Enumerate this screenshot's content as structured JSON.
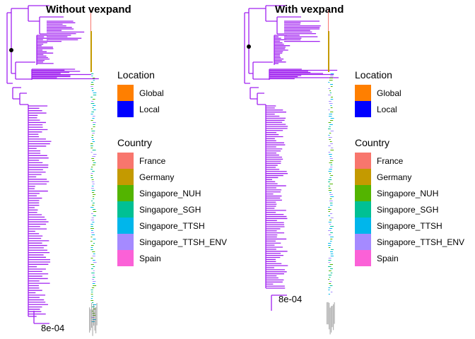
{
  "chart_data": [
    {
      "type": "phylogenetic-tree",
      "title": "Without vexpand",
      "scale_label": "8e-04",
      "branch_color": "#A020F0"
    },
    {
      "type": "phylogenetic-tree",
      "title": "With vexpand",
      "scale_label": "8e-04",
      "branch_color": "#A020F0"
    }
  ],
  "legends": [
    {
      "title": "Location",
      "items": [
        {
          "label": "Global",
          "color": "#FF7F00"
        },
        {
          "label": "Local",
          "color": "#0000FF"
        }
      ]
    },
    {
      "title": "Country",
      "items": [
        {
          "label": "France",
          "color": "#F8766D"
        },
        {
          "label": "Germany",
          "color": "#C49A00"
        },
        {
          "label": "Singapore_NUH",
          "color": "#53B400"
        },
        {
          "label": "Singapore_SGH",
          "color": "#00C094"
        },
        {
          "label": "Singapore_TTSH",
          "color": "#00B6EB"
        },
        {
          "label": "Singapore_TTSH_ENV",
          "color": "#A58AFF"
        },
        {
          "label": "Spain",
          "color": "#FB61D7"
        }
      ]
    }
  ]
}
